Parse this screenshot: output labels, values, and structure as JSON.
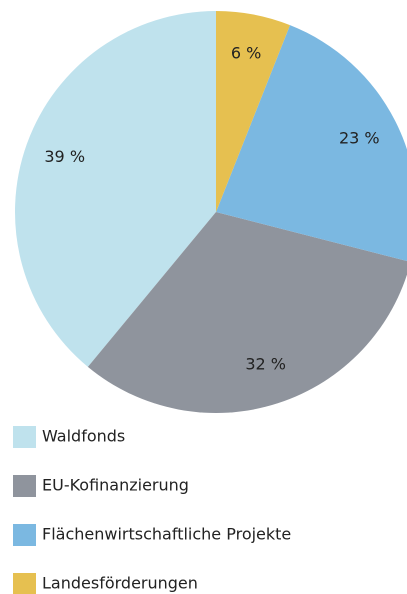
{
  "chart_data": {
    "type": "pie",
    "categories": [
      "Waldfonds",
      "EU-Kofinanzierung",
      "Flächenwirtschaftliche Projekte",
      "Landesförderungen"
    ],
    "values": [
      39,
      32,
      23,
      6
    ],
    "value_labels": [
      "39 %",
      "32 %",
      "23 %",
      "6 %"
    ],
    "colors": [
      "#bfe2ed",
      "#8f949d",
      "#7bb8e1",
      "#e6c050"
    ],
    "direction": "counterclockwise",
    "legend": "bottom"
  }
}
